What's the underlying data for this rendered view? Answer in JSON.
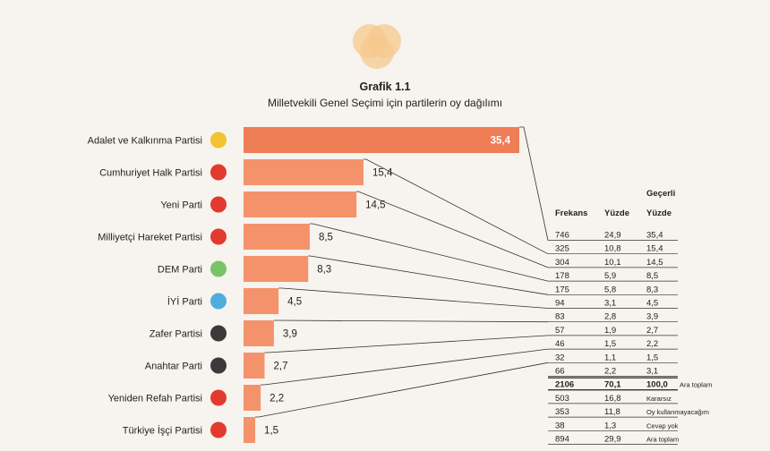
{
  "chart_title": "Grafik 1.1",
  "chart_subtitle": "Milletvekili Genel Seçimi için partilerin oy dağılımı",
  "colors": {
    "bar": "#f4936b",
    "bar_top": "#ef7d56",
    "logo": "#f6c98d"
  },
  "chart_data": {
    "type": "bar",
    "orientation": "horizontal",
    "categories": [
      "Adalet ve Kalkınma Partisi",
      "Cumhuriyet Halk Partisi",
      "Yeni Parti",
      "Milliyetçi Hareket Partisi",
      "DEM Parti",
      "İYİ Parti",
      "Zafer Partisi",
      "Anahtar Parti",
      "Yeniden Refah Partisi",
      "Türkiye İşçi Partisi"
    ],
    "values": [
      35.4,
      15.4,
      14.5,
      8.5,
      8.3,
      4.5,
      3.9,
      2.7,
      2.2,
      1.5
    ],
    "value_labels": [
      "35,4",
      "15,4",
      "14,5",
      "8,5",
      "8,3",
      "4,5",
      "3,9",
      "2,7",
      "2,2",
      "1,5"
    ],
    "icons": [
      "akp-bulb-icon",
      "chp-arrows-icon",
      "yeni-parti-logo-icon",
      "mhp-crescents-icon",
      "dem-parti-logo-icon",
      "iyi-parti-star-icon",
      "zafer-torch-icon",
      "anahtar-key-icon",
      "yeniden-refah-logo-icon",
      "tip-logo-icon"
    ],
    "table": {
      "headers": [
        "Frekans",
        "Yüzde",
        "Geçerli Yüzde"
      ],
      "rows": [
        [
          "746",
          "24,9",
          "35,4",
          ""
        ],
        [
          "325",
          "10,8",
          "15,4",
          ""
        ],
        [
          "304",
          "10,1",
          "14,5",
          ""
        ],
        [
          "178",
          "5,9",
          "8,5",
          ""
        ],
        [
          "175",
          "5,8",
          "8,3",
          ""
        ],
        [
          "94",
          "3,1",
          "4,5",
          ""
        ],
        [
          "83",
          "2,8",
          "3,9",
          ""
        ],
        [
          "57",
          "1,9",
          "2,7",
          ""
        ],
        [
          "46",
          "1,5",
          "2,2",
          ""
        ],
        [
          "32",
          "1,1",
          "1,5",
          ""
        ],
        [
          "66",
          "2,2",
          "3,1",
          ""
        ],
        [
          "2106",
          "70,1",
          "100,0",
          "Ara toplam"
        ],
        [
          "503",
          "16,8",
          "",
          "Kararsız"
        ],
        [
          "353",
          "11,8",
          "",
          "Oy kullanmayacağım"
        ],
        [
          "38",
          "1,3",
          "",
          "Cevap yok"
        ],
        [
          "894",
          "29,9",
          "",
          "Ara toplam"
        ]
      ]
    }
  }
}
